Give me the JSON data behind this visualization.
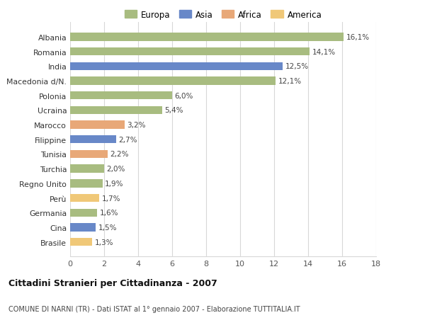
{
  "categories": [
    "Brasile",
    "Cina",
    "Germania",
    "Perù",
    "Regno Unito",
    "Turchia",
    "Tunisia",
    "Filippine",
    "Marocco",
    "Ucraina",
    "Polonia",
    "Macedonia d/N.",
    "India",
    "Romania",
    "Albania"
  ],
  "values": [
    1.3,
    1.5,
    1.6,
    1.7,
    1.9,
    2.0,
    2.2,
    2.7,
    3.2,
    5.4,
    6.0,
    12.1,
    12.5,
    14.1,
    16.1
  ],
  "labels": [
    "1,3%",
    "1,5%",
    "1,6%",
    "1,7%",
    "1,9%",
    "2,0%",
    "2,2%",
    "2,7%",
    "3,2%",
    "5,4%",
    "6,0%",
    "12,1%",
    "12,5%",
    "14,1%",
    "16,1%"
  ],
  "colors": [
    "#f0c878",
    "#6888c8",
    "#a8bc80",
    "#f0c878",
    "#a8bc80",
    "#a8bc80",
    "#e8a878",
    "#6888c8",
    "#e8a878",
    "#a8bc80",
    "#a8bc80",
    "#a8bc80",
    "#6888c8",
    "#a8bc80",
    "#a8bc80"
  ],
  "legend_labels": [
    "Europa",
    "Asia",
    "Africa",
    "America"
  ],
  "legend_colors": [
    "#a8bc80",
    "#6888c8",
    "#e8a878",
    "#f0c878"
  ],
  "title1": "Cittadini Stranieri per Cittadinanza - 2007",
  "title2": "COMUNE DI NARNI (TR) - Dati ISTAT al 1° gennaio 2007 - Elaborazione TUTTITALIA.IT",
  "xlim": [
    0,
    18
  ],
  "xticks": [
    0,
    2,
    4,
    6,
    8,
    10,
    12,
    14,
    16,
    18
  ],
  "bg_color": "#ffffff",
  "grid_color": "#d8d8d8",
  "bar_height": 0.55
}
